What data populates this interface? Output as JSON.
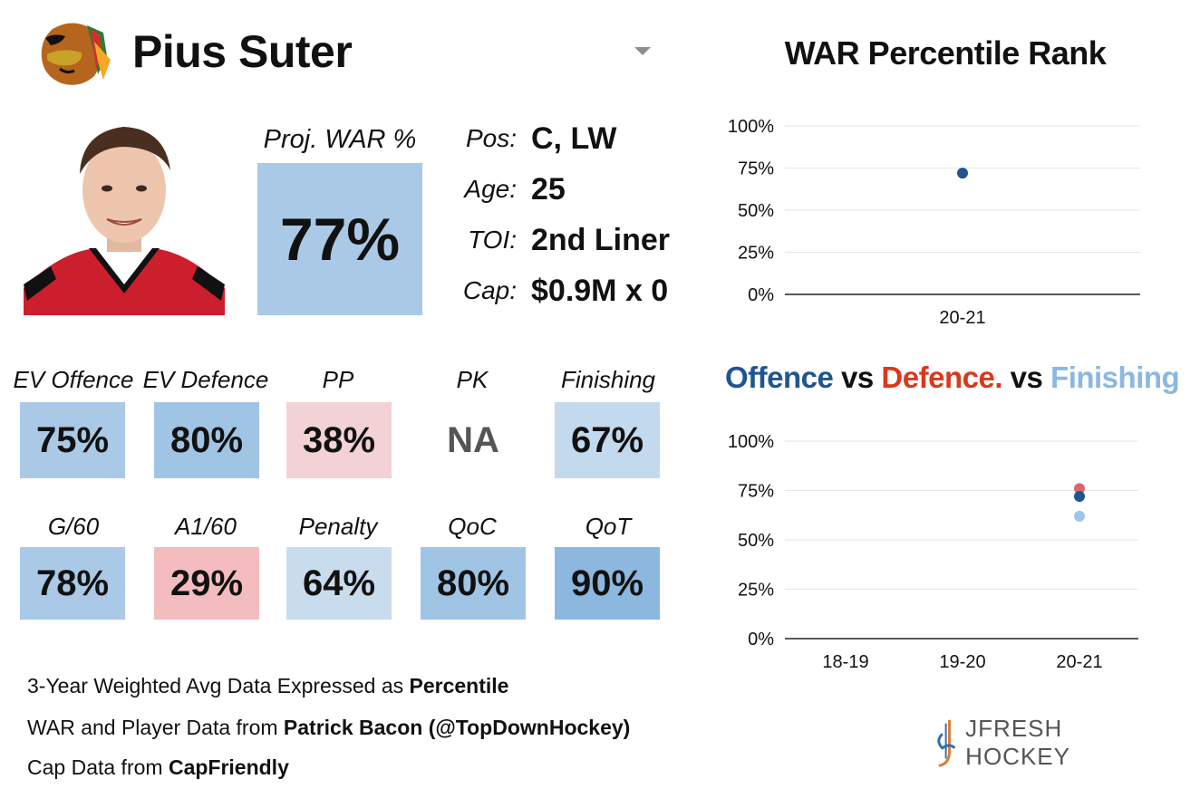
{
  "header": {
    "player_name": "Pius Suter",
    "team_logo_icon": "blackhawks-logo",
    "dropdown_icon": "chevron-down-icon"
  },
  "projection": {
    "label": "Proj. WAR %",
    "value": "77%",
    "color": "#a9c9e6"
  },
  "info": [
    {
      "label": "Pos:",
      "value": "C, LW"
    },
    {
      "label": "Age:",
      "value": "25"
    },
    {
      "label": "TOI:",
      "value": "2nd Liner"
    },
    {
      "label": "Cap:",
      "value": "$0.9M x 0"
    }
  ],
  "stats_row1": [
    {
      "label": "EV Offence",
      "value": "75%",
      "color": "#a9c9e6"
    },
    {
      "label": "EV Defence",
      "value": "80%",
      "color": "#a0c4e4"
    },
    {
      "label": "PP",
      "value": "38%",
      "color": "#f2d2d4"
    },
    {
      "label": "PK",
      "value": "NA",
      "color": "#ffffff"
    },
    {
      "label": "Finishing",
      "value": "67%",
      "color": "#c3d9ed"
    }
  ],
  "stats_row2": [
    {
      "label": "G/60",
      "value": "78%",
      "color": "#a9c9e6"
    },
    {
      "label": "A1/60",
      "value": "29%",
      "color": "#f4bcbf"
    },
    {
      "label": "Penalty",
      "value": "64%",
      "color": "#c9dcee"
    },
    {
      "label": "QoC",
      "value": "80%",
      "color": "#a0c4e4"
    },
    {
      "label": "QoT",
      "value": "90%",
      "color": "#8cb7de"
    }
  ],
  "footer": {
    "line1_prefix": "3-Year Weighted Avg Data Expressed as ",
    "line1_bold": "Percentile",
    "line2_prefix": "WAR and Player Data from ",
    "line2_bold": "Patrick Bacon (@TopDownHockey)",
    "line3_prefix": "Cap Data from ",
    "line3_bold": "CapFriendly"
  },
  "brand": {
    "name": "JFRESH HOCKEY",
    "icon": "jfresh-logo-icon"
  },
  "chart_data": [
    {
      "type": "scatter",
      "title": "WAR Percentile Rank",
      "categories": [
        "20-21"
      ],
      "series": [
        {
          "values": [
            72
          ],
          "color": "#1f5590"
        }
      ],
      "yticks": [
        "100%",
        "75%",
        "50%",
        "25%",
        "0%"
      ],
      "ylim": [
        0,
        100
      ],
      "grid": true
    },
    {
      "type": "scatter",
      "title_parts": [
        {
          "text": "Offence",
          "color": "#1f5590"
        },
        {
          "text": " vs ",
          "color": "#111111"
        },
        {
          "text": "Defence.",
          "color": "#d9381e"
        },
        {
          "text": " vs ",
          "color": "#111111"
        },
        {
          "text": "Finishing",
          "color": "#8ab8e0"
        }
      ],
      "categories": [
        "18-19",
        "19-20",
        "20-21"
      ],
      "series": [
        {
          "values": [
            null,
            null,
            76
          ],
          "color": "#d9686e"
        },
        {
          "values": [
            null,
            null,
            72
          ],
          "color": "#1f5590"
        },
        {
          "values": [
            null,
            null,
            62
          ],
          "color": "#9ec4e6"
        }
      ],
      "yticks": [
        "100%",
        "75%",
        "50%",
        "25%",
        "0%"
      ],
      "ylim": [
        0,
        100
      ],
      "grid": true
    }
  ]
}
